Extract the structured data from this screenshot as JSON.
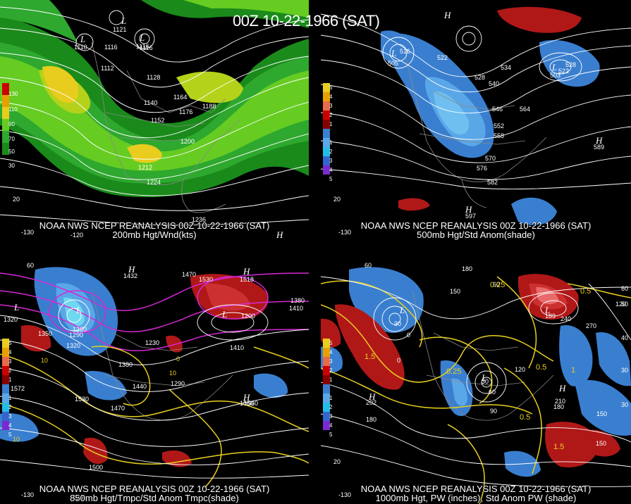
{
  "title": "00Z 10-22-1966 (SAT)",
  "panels": [
    {
      "caption_line1": "NOAA NWS NCEP REANALYSIS 00Z 10-22-1966 (SAT)",
      "caption_line2": "200mb Hgt/Wnd(kts)",
      "legend": [
        "130",
        "110",
        "90",
        "70",
        "50",
        "30"
      ],
      "contour_labels": [
        "1116",
        "1116",
        "1128",
        "1140",
        "1152",
        "1164",
        "1176",
        "1188",
        "1200",
        "1212",
        "1224",
        "1236"
      ],
      "centers": [
        "L",
        "L",
        "L",
        "H"
      ],
      "center_values": [
        "1121",
        "1116",
        "1112",
        "1110"
      ],
      "lat_labels": [
        "20"
      ],
      "lon_labels": [
        "-130",
        "-120"
      ]
    },
    {
      "caption_line1": "NOAA NWS NCEP REANALYSIS 00Z 10-22-1966 (SAT)",
      "caption_line2": "500mb Hgt/Std Anom(shade)",
      "legend": [
        "5",
        "4",
        "3",
        "2",
        "1",
        "1",
        "2",
        "3",
        "4",
        "5"
      ],
      "contour_labels": [
        "516",
        "522",
        "528",
        "534",
        "540",
        "546",
        "552",
        "558",
        "564",
        "570",
        "576",
        "582",
        "528",
        "522"
      ],
      "centers": [
        "L",
        "L",
        "H",
        "H",
        "H"
      ],
      "center_values": [
        "505",
        "503",
        "597",
        "589"
      ],
      "lat_labels": [
        "20"
      ],
      "lon_labels": [
        "-130"
      ]
    },
    {
      "caption_line1": "NOAA NWS NCEP REANALYSIS 00Z 10-22-1966 (SAT)",
      "caption_line2": "850mb Hgt/Tmpc/Std Anom Tmpc(shade)",
      "legend": [
        "5",
        "4",
        "3",
        "2",
        "1",
        "1",
        "2",
        "3",
        "4",
        "5"
      ],
      "contour_labels": [
        "1530",
        "1470",
        "1380",
        "1410",
        "1320",
        "1350",
        "1260",
        "1290",
        "1230",
        "1320",
        "1380",
        "1440",
        "1290",
        "1530",
        "1470",
        "1500",
        "1410",
        "1560",
        "1200"
      ],
      "centers": [
        "H",
        "H",
        "L",
        "L",
        "L",
        "H"
      ],
      "center_values": [
        "1432",
        "1518",
        "1572",
        "1560"
      ],
      "temp_labels": [
        "10",
        "10",
        "0",
        "10"
      ],
      "lat_labels": [
        "60"
      ],
      "lon_labels": [
        "-130",
        "-120"
      ]
    },
    {
      "caption_line1": "NOAA NWS NCEP REANALYSIS 00Z 10-22-1966 (SAT)",
      "caption_line2": "1000mb Hgt, PW (inches), Std Anom PW (shade)",
      "legend": [
        "5",
        "4",
        "3",
        "2",
        "1",
        "1",
        "2",
        "3",
        "4",
        "5"
      ],
      "contour_labels": [
        "180",
        "150",
        "120",
        "60",
        "30",
        "0",
        "0",
        "30",
        "60",
        "90",
        "120",
        "180",
        "150",
        "210",
        "180",
        "150",
        "240",
        "270"
      ],
      "pw_labels": [
        "0.25",
        "0.5",
        "1.5",
        "0.25",
        "0.5",
        "1",
        "0.5",
        "1.5"
      ],
      "centers": [
        "L",
        "L",
        "H",
        "H",
        "L"
      ],
      "center_values": [
        "202",
        "189"
      ],
      "lat_labels": [
        "60",
        "60",
        "50",
        "40",
        "30",
        "30",
        "20"
      ],
      "lon_labels": [
        "-130"
      ]
    }
  ]
}
